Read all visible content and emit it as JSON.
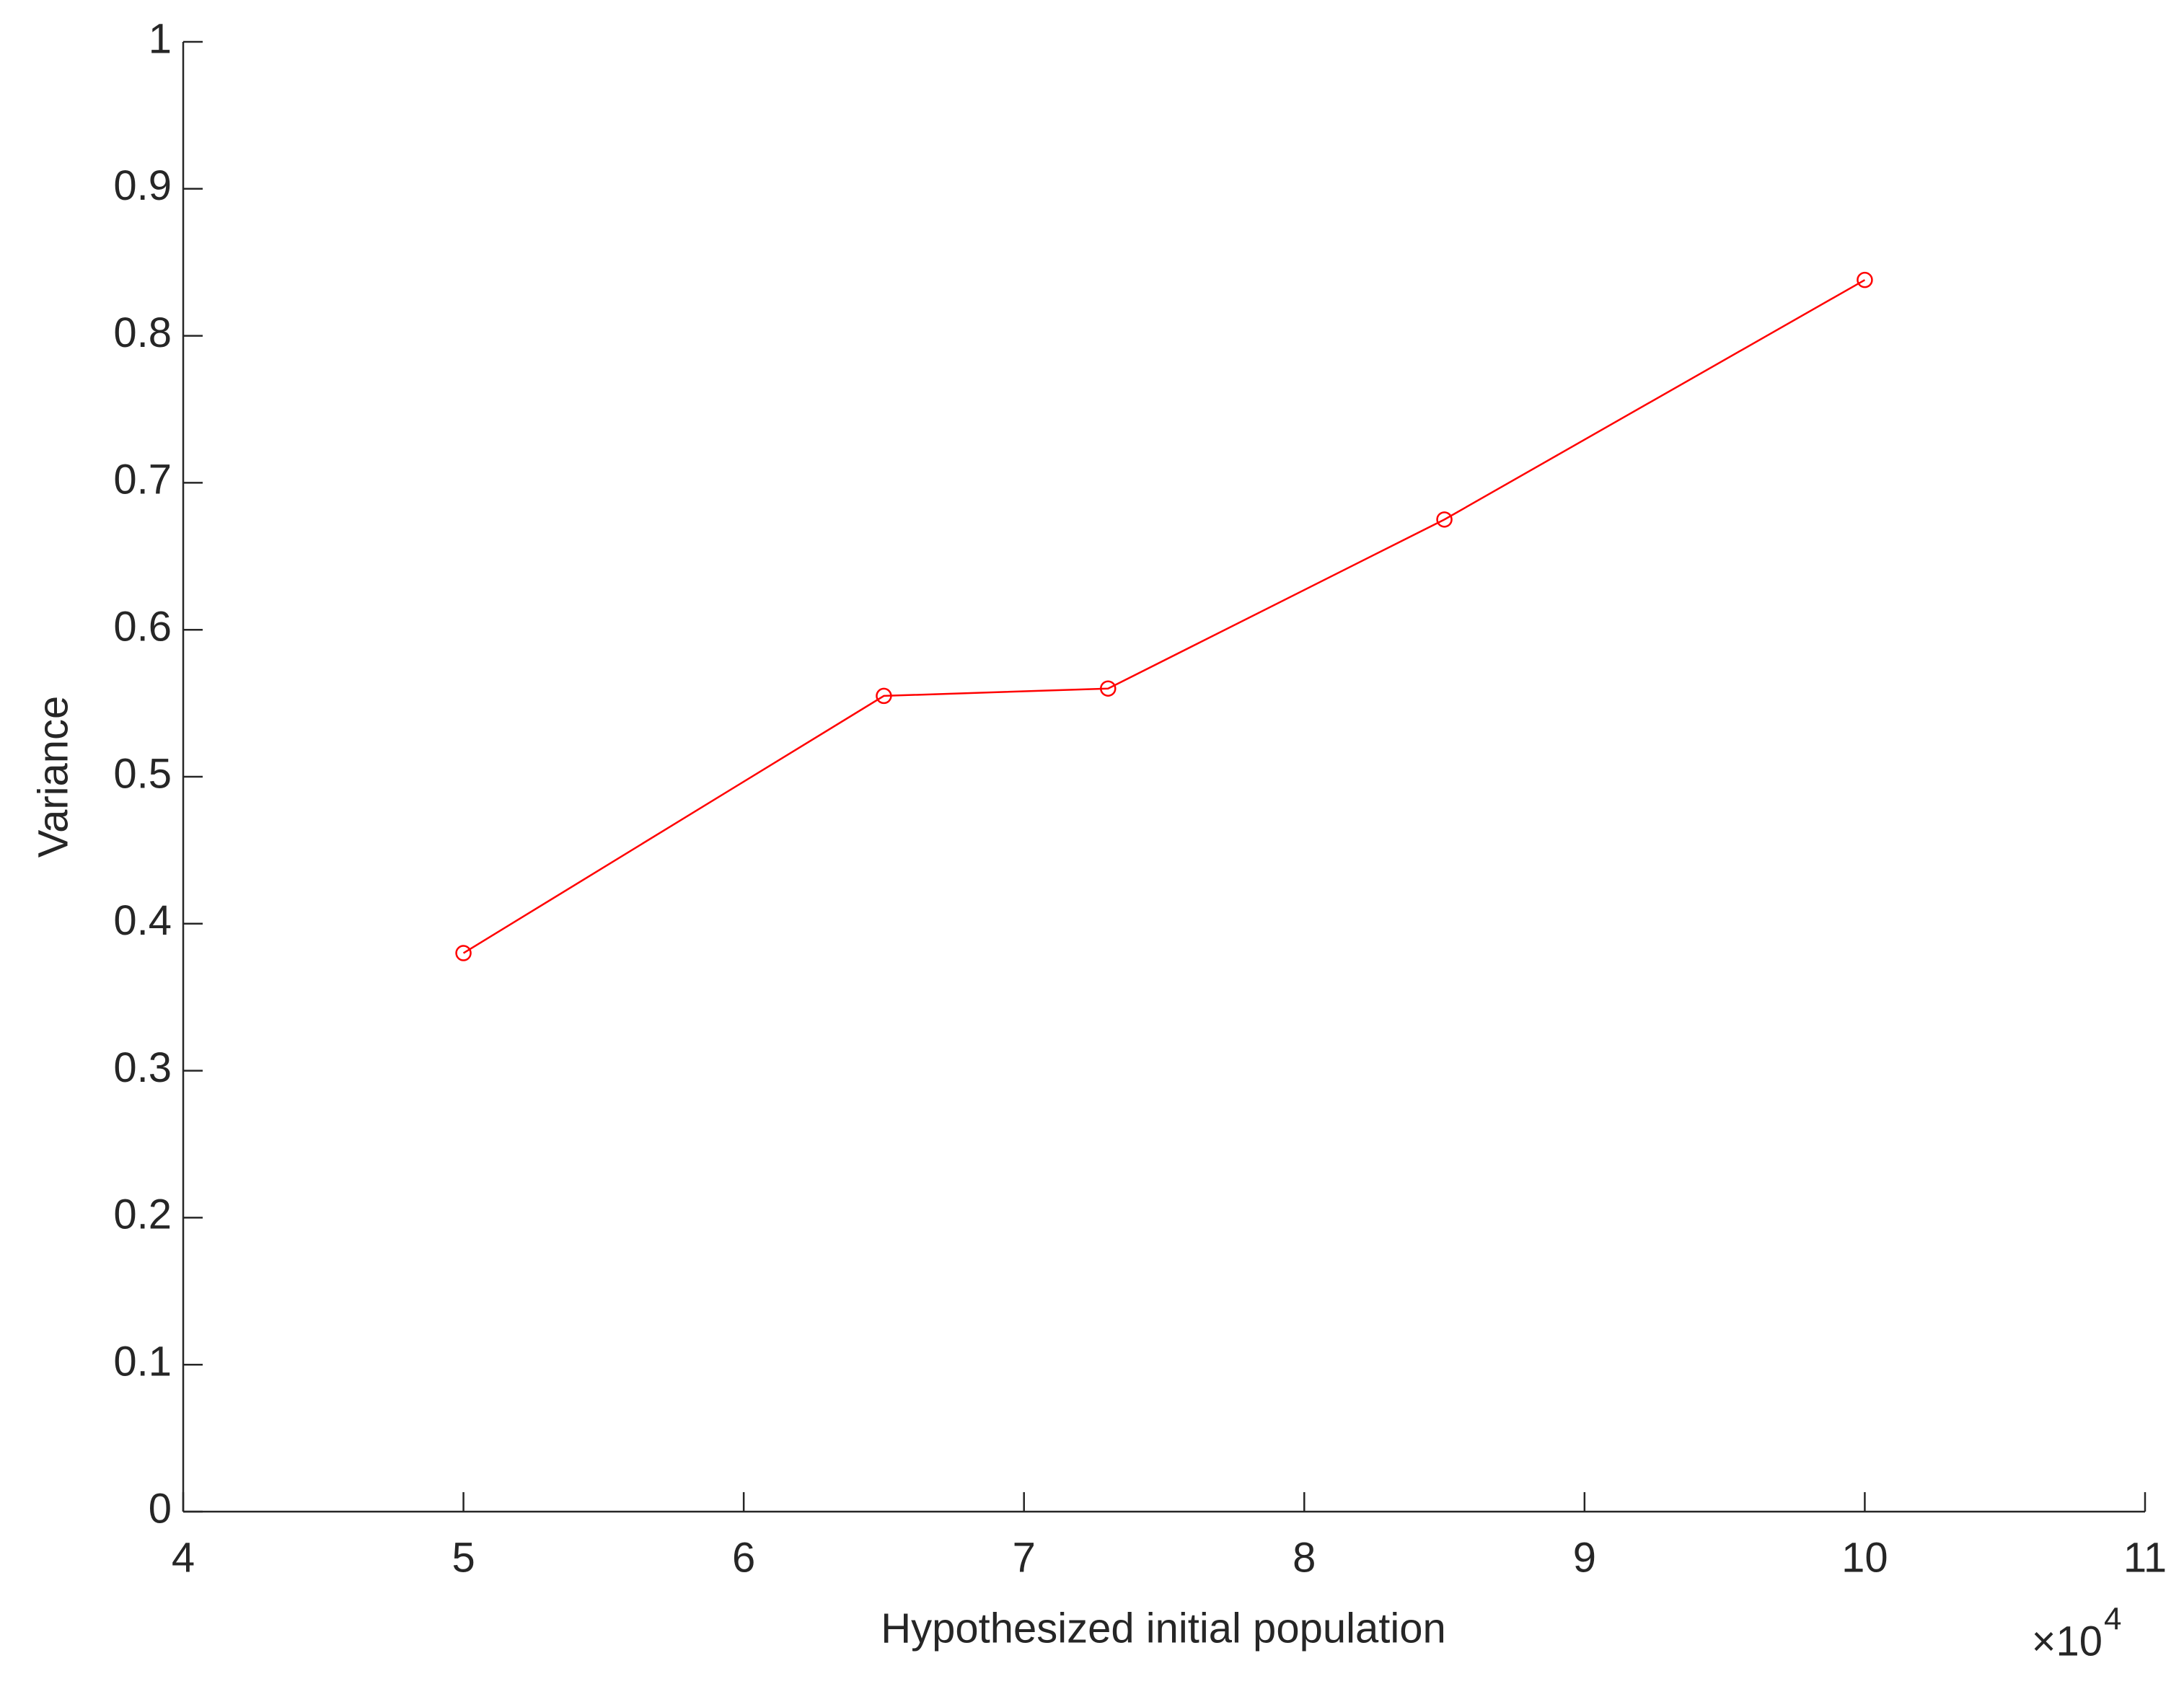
{
  "chart_data": {
    "type": "line",
    "x_label": "Hypothesized initial population",
    "y_label": "Variance",
    "x_multiplier": {
      "base": "×10",
      "exponent": "4"
    },
    "x": [
      5,
      6.5,
      7.3,
      8.5,
      10
    ],
    "values": [
      0.38,
      0.555,
      0.56,
      0.675,
      0.838
    ],
    "color": "#ff0000",
    "marker": "circle",
    "xlim": [
      4,
      11
    ],
    "xticks": [
      4,
      5,
      6,
      7,
      8,
      9,
      10,
      11
    ],
    "ylim": [
      0,
      1
    ],
    "yticks": [
      0,
      0.1,
      0.2,
      0.3,
      0.4,
      0.5,
      0.6,
      0.7,
      0.8,
      0.9,
      1
    ],
    "grid": false
  }
}
